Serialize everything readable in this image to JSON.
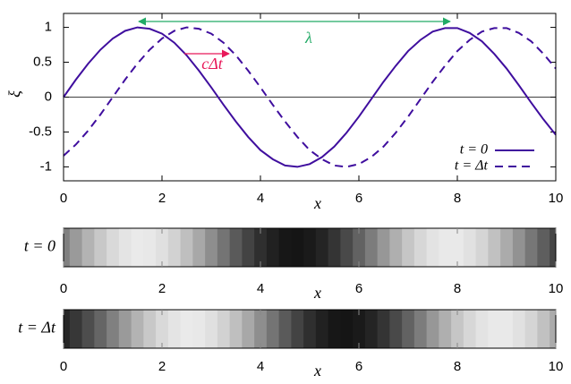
{
  "chart_data": {
    "type": "line",
    "x_label": "x",
    "y_label": "ξ",
    "x": [
      0,
      0.25,
      0.5,
      0.75,
      1,
      1.25,
      1.5,
      1.75,
      2,
      2.25,
      2.5,
      2.75,
      3,
      3.25,
      3.5,
      3.75,
      4,
      4.25,
      4.5,
      4.75,
      5,
      5.25,
      5.5,
      5.75,
      6,
      6.25,
      6.5,
      6.75,
      7,
      7.25,
      7.5,
      7.75,
      8,
      8.25,
      8.5,
      8.75,
      9,
      9.25,
      9.5,
      9.75,
      10
    ],
    "series": [
      {
        "name": "t = 0",
        "color": "#3f0e9e",
        "dash": false,
        "values": [
          0,
          0.25,
          0.48,
          0.68,
          0.84,
          0.95,
          1.0,
          0.98,
          0.91,
          0.78,
          0.6,
          0.38,
          0.14,
          -0.11,
          -0.35,
          -0.57,
          -0.76,
          -0.89,
          -0.98,
          -1.0,
          -0.96,
          -0.86,
          -0.71,
          -0.51,
          -0.28,
          -0.03,
          0.22,
          0.45,
          0.66,
          0.82,
          0.94,
          0.99,
          0.99,
          0.92,
          0.8,
          0.62,
          0.41,
          0.17,
          -0.08,
          -0.32,
          -0.54
        ]
      },
      {
        "name": "t = Δt",
        "color": "#3f0e9e",
        "dash": true,
        "values": [
          -0.84,
          -0.68,
          -0.48,
          -0.25,
          0,
          0.25,
          0.48,
          0.68,
          0.84,
          0.95,
          1.0,
          0.98,
          0.91,
          0.78,
          0.6,
          0.38,
          0.14,
          -0.11,
          -0.35,
          -0.57,
          -0.76,
          -0.89,
          -0.98,
          -1.0,
          -0.96,
          -0.86,
          -0.71,
          -0.51,
          -0.28,
          -0.03,
          0.22,
          0.45,
          0.66,
          0.82,
          0.94,
          0.99,
          0.99,
          0.92,
          0.8,
          0.62,
          0.41
        ]
      }
    ],
    "xlim": [
      0,
      10
    ],
    "xticks": [
      0,
      2,
      4,
      6,
      8,
      10
    ],
    "ylim": [
      -1.2,
      1.2
    ],
    "yticks": [
      1,
      0.5,
      0,
      -0.5,
      -1
    ],
    "zero_line": true,
    "legend": "lower right",
    "annotations": [
      {
        "text": "λ",
        "color": "#22aa66"
      },
      {
        "text": "cΔt",
        "color": "#e8195a"
      }
    ]
  }
}
